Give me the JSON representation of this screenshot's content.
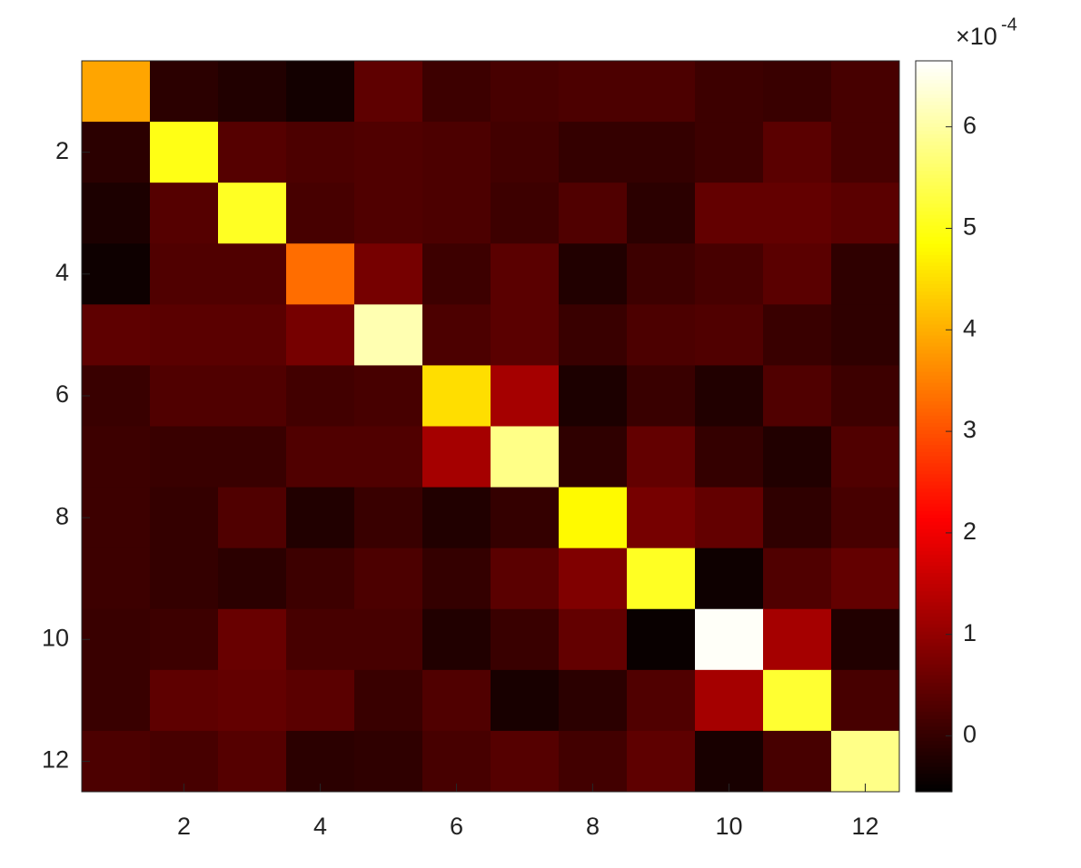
{
  "chart_data": {
    "type": "heatmap",
    "colormap": "hot",
    "colorbar_exponent_base": "×10",
    "colorbar_exponent": "-4",
    "xlim": [
      0.5,
      12.5
    ],
    "xticks": [
      2,
      4,
      6,
      8,
      10,
      12
    ],
    "ylim": [
      12.5,
      0.5
    ],
    "yticks": [
      2,
      4,
      6,
      8,
      10,
      12
    ],
    "clim": [
      -0.55,
      6.65
    ],
    "cticks": [
      0,
      1,
      2,
      3,
      4,
      5,
      6
    ],
    "z": [
      [
        3.9,
        -0.1,
        -0.2,
        -0.35,
        0.45,
        0.1,
        0.2,
        0.25,
        0.25,
        0.1,
        0.05,
        0.2
      ],
      [
        -0.1,
        5.0,
        0.35,
        0.25,
        0.3,
        0.25,
        0.15,
        0.0,
        0.0,
        0.1,
        0.4,
        0.2
      ],
      [
        -0.25,
        0.35,
        5.1,
        0.2,
        0.3,
        0.25,
        0.1,
        0.3,
        -0.1,
        0.5,
        0.5,
        0.4
      ],
      [
        -0.4,
        0.3,
        0.3,
        3.3,
        0.7,
        0.1,
        0.4,
        -0.2,
        0.1,
        0.2,
        0.4,
        -0.05
      ],
      [
        0.45,
        0.4,
        0.4,
        0.7,
        6.1,
        0.25,
        0.4,
        0.05,
        0.25,
        0.3,
        0.05,
        -0.05
      ],
      [
        0.05,
        0.3,
        0.3,
        0.15,
        0.2,
        4.5,
        1.2,
        -0.25,
        0.05,
        -0.2,
        0.3,
        0.1
      ],
      [
        0.1,
        0.05,
        0.05,
        0.3,
        0.3,
        1.2,
        5.8,
        -0.05,
        0.5,
        0.0,
        -0.2,
        0.3
      ],
      [
        0.1,
        0.0,
        0.3,
        -0.2,
        0.05,
        -0.2,
        0.0,
        4.8,
        0.7,
        0.5,
        -0.05,
        0.2
      ],
      [
        0.1,
        0.0,
        -0.1,
        0.1,
        0.25,
        0.0,
        0.4,
        0.8,
        5.1,
        -0.4,
        0.3,
        0.5
      ],
      [
        0.05,
        0.1,
        0.55,
        0.2,
        0.2,
        -0.2,
        0.05,
        0.5,
        -0.45,
        6.6,
        1.2,
        -0.2
      ],
      [
        0.05,
        0.45,
        0.5,
        0.4,
        0.05,
        0.3,
        -0.3,
        -0.1,
        0.3,
        1.2,
        5.2,
        0.2
      ],
      [
        0.25,
        0.2,
        0.35,
        -0.1,
        -0.05,
        0.2,
        0.35,
        0.15,
        0.45,
        -0.3,
        0.2,
        5.8
      ]
    ]
  }
}
